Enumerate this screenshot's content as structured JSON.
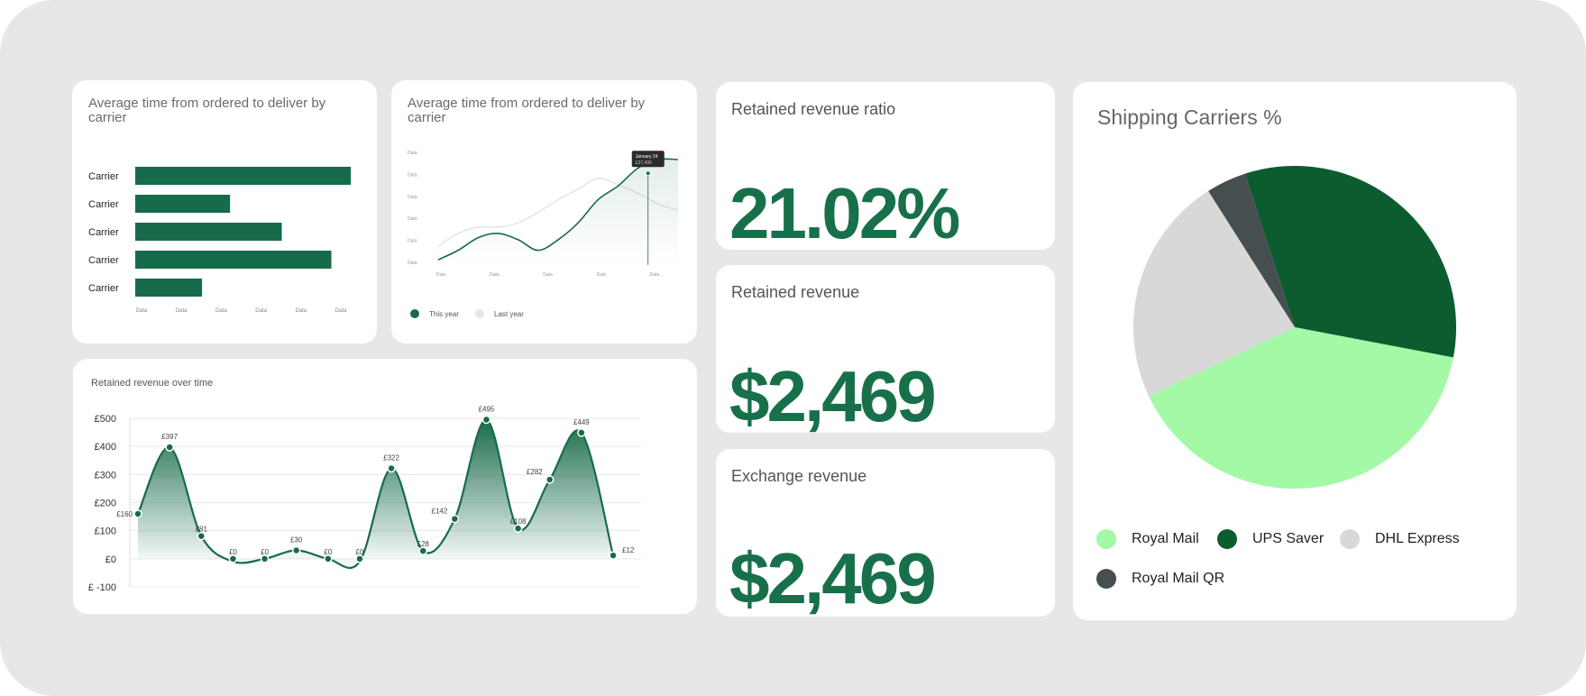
{
  "colors": {
    "primary_green": "#176b4a",
    "dark_green": "#0c5c30",
    "light_green": "#a4f9a6",
    "light_grey": "#d8d8d8",
    "dark_grey": "#474e4f"
  },
  "bar_card": {
    "title": "Average time from ordered to deliver by carrier",
    "chart_data": {
      "type": "bar",
      "orientation": "horizontal",
      "title": "Average time from ordered to deliver by carrier",
      "categories": [
        "Carrier",
        "Carrier",
        "Carrier",
        "Carrier",
        "Carrier"
      ],
      "values": [
        100,
        44,
        68,
        91,
        31
      ],
      "x_tick_labels": [
        "Data",
        "Data",
        "Data",
        "Data",
        "Data",
        "Data"
      ],
      "xlim": [
        0,
        100
      ]
    }
  },
  "line_card": {
    "title": "Average time from ordered to deliver by carrier",
    "tooltip": {
      "date": "January 24",
      "value": "£27,430"
    },
    "legend": {
      "this_year": "This year",
      "last_year": "Last year"
    },
    "chart_data": {
      "type": "line",
      "title": "Average time from ordered to deliver by carrier",
      "y_tick_labels": [
        "Data",
        "Data",
        "Data",
        "Data",
        "Data",
        "Data"
      ],
      "x_tick_labels": [
        "Data",
        "Data",
        "Data",
        "Data",
        "Data"
      ],
      "x": [
        0,
        1,
        2,
        3,
        4,
        5,
        6,
        7,
        8,
        9,
        10,
        11,
        12
      ],
      "ylim": [
        0,
        100
      ],
      "series": [
        {
          "name": "This year",
          "values": [
            5,
            14,
            26,
            30,
            24,
            14,
            24,
            40,
            62,
            75,
            92,
            100,
            100
          ]
        },
        {
          "name": "Last year",
          "values": [
            18,
            30,
            36,
            36,
            40,
            50,
            62,
            72,
            82,
            76,
            68,
            58,
            52
          ]
        }
      ]
    }
  },
  "area_card": {
    "title": "Retained revenue over time",
    "chart_data": {
      "type": "area",
      "title": "Retained revenue over time",
      "y_tick_labels": [
        "£500",
        "£400",
        "£300",
        "£200",
        "£100",
        "£0",
        "£ -100"
      ],
      "ylim": [
        -100,
        500
      ],
      "x": [
        0,
        1,
        2,
        3,
        4,
        5,
        6,
        7,
        8,
        9,
        10,
        11,
        12,
        13,
        14,
        15
      ],
      "values": [
        160,
        397,
        81,
        0,
        0,
        30,
        0,
        0,
        322,
        28,
        142,
        495,
        108,
        282,
        449,
        12
      ],
      "labels": [
        "£160",
        "£397",
        "£81",
        "£0",
        "£0",
        "£30",
        "£0",
        "£0",
        "£322",
        "£28",
        "£142",
        "£495",
        "£108",
        "£282",
        "£449",
        "£12"
      ]
    }
  },
  "kpis": [
    {
      "label": "Retained revenue ratio",
      "value": "21.02%"
    },
    {
      "label": "Retained revenue",
      "value": "$2,469"
    },
    {
      "label": "Exchange revenue",
      "value": "$2,469"
    }
  ],
  "pie_card": {
    "title": "Shipping Carriers %",
    "chart_data": {
      "type": "pie",
      "title": "Shipping Carriers %",
      "legend": "bottom",
      "labels": [
        "UPS Saver",
        "Royal Mail",
        "DHL Express",
        "Royal Mail QR"
      ],
      "values": [
        33,
        40,
        23,
        4
      ],
      "colors": [
        "#0c5c30",
        "#a4f9a6",
        "#d8d8d8",
        "#474e4f"
      ]
    },
    "legend_items": [
      {
        "label": "Royal Mail",
        "color": "#a4f9a6"
      },
      {
        "label": "UPS Saver",
        "color": "#0c5c30"
      },
      {
        "label": "DHL Express",
        "color": "#d8d8d8"
      },
      {
        "label": "Royal Mail QR",
        "color": "#474e4f"
      }
    ]
  }
}
